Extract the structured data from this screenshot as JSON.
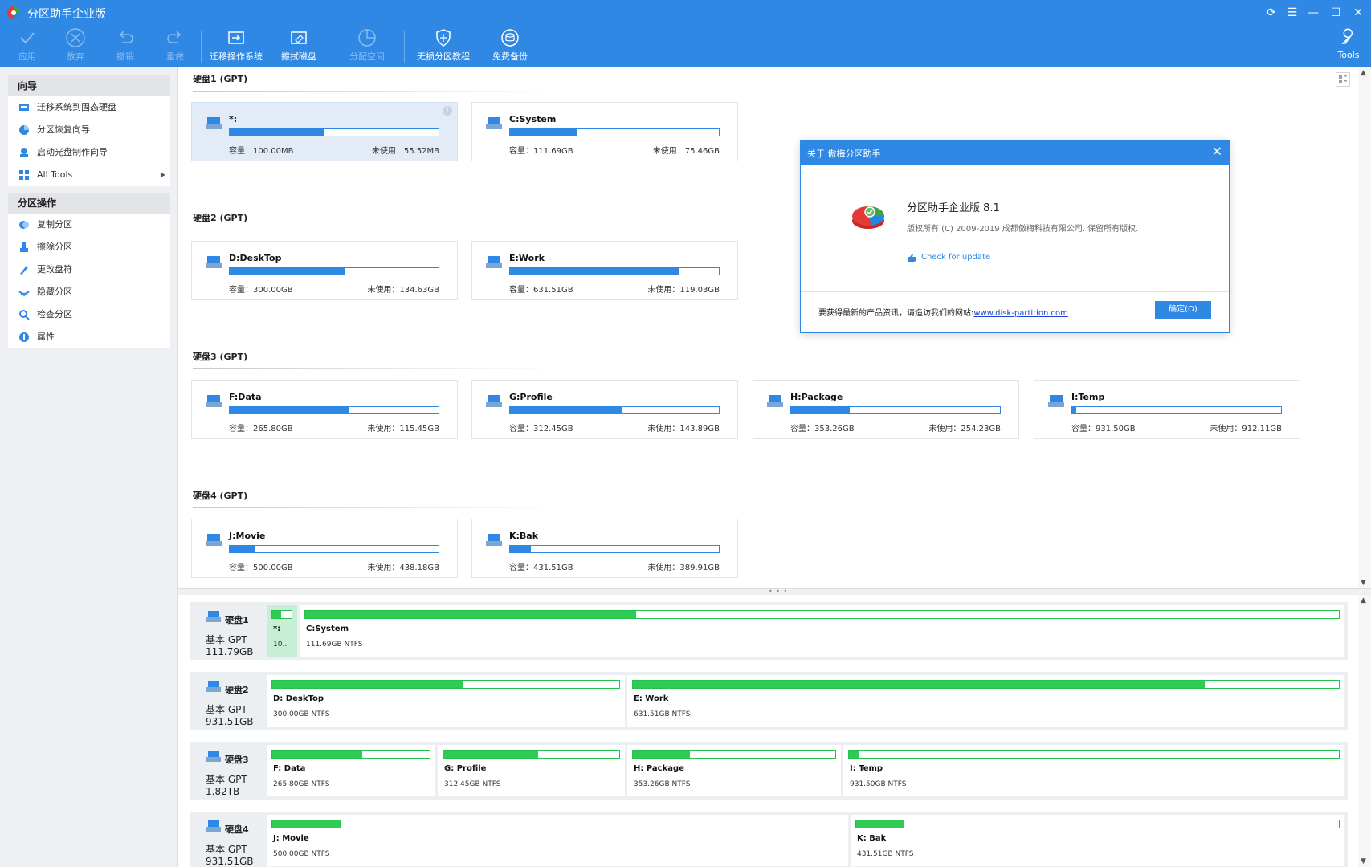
{
  "app": {
    "title": "分区助手企业版"
  },
  "titlebar": {
    "buttons": [
      {
        "name": "refresh-icon",
        "glyph": "⟳"
      },
      {
        "name": "menu-icon",
        "glyph": "☰"
      },
      {
        "name": "minimize-icon",
        "glyph": "—"
      },
      {
        "name": "maximize-icon",
        "glyph": "☐"
      },
      {
        "name": "close-icon",
        "glyph": "✕"
      }
    ]
  },
  "toolbar": {
    "apply": "应用",
    "discard": "放弃",
    "undo": "撤销",
    "redo": "重做",
    "migrate_os": "迁移操作系统",
    "wipe_disk": "擦拭磁盘",
    "allocate_space": "分配空间",
    "lossless_tutorial": "无损分区教程",
    "free_backup": "免费备份",
    "tools": "Tools"
  },
  "sidebar": {
    "wizard_title": "向导",
    "wizard_items": [
      {
        "label": "迁移系统到固态硬盘",
        "icon": "ssd-migrate-icon"
      },
      {
        "label": "分区恢复向导",
        "icon": "partition-recovery-icon"
      },
      {
        "label": "启动光盘制作向导",
        "icon": "bootable-media-icon"
      },
      {
        "label": "All Tools",
        "icon": "all-tools-icon"
      }
    ],
    "ops_title": "分区操作",
    "ops_items": [
      {
        "label": "复制分区",
        "icon": "copy-partition-icon"
      },
      {
        "label": "擦除分区",
        "icon": "wipe-partition-icon"
      },
      {
        "label": "更改盘符",
        "icon": "change-letter-icon"
      },
      {
        "label": "隐藏分区",
        "icon": "hide-partition-icon"
      },
      {
        "label": "检查分区",
        "icon": "check-partition-icon"
      },
      {
        "label": "属性",
        "icon": "properties-icon"
      }
    ]
  },
  "labels": {
    "capacity_prefix": "容量：",
    "unused_prefix": "未使用："
  },
  "disks": [
    {
      "header": "硬盘1 (GPT)",
      "bottom_name": "硬盘1",
      "bottom_type": "基本 GPT",
      "bottom_size": "111.79GB",
      "partitions": [
        {
          "name": "*:",
          "capacity": "容量：100.00MB",
          "unused": "未使用：55.52MB",
          "used_fraction": 0.45,
          "bottom_name": "*:",
          "bottom_info": "10...",
          "selected": true
        },
        {
          "name": "C:System",
          "capacity": "容量：111.69GB",
          "unused": "未使用：75.46GB",
          "used_fraction": 0.32,
          "bottom_name": "C:System",
          "bottom_info": "111.69GB NTFS",
          "selected": false
        }
      ]
    },
    {
      "header": "硬盘2 (GPT)",
      "bottom_name": "硬盘2",
      "bottom_type": "基本 GPT",
      "bottom_size": "931.51GB",
      "partitions": [
        {
          "name": "D:DeskTop",
          "capacity": "容量：300.00GB",
          "unused": "未使用：134.63GB",
          "used_fraction": 0.55,
          "bottom_name": "D: DeskTop",
          "bottom_info": "300.00GB NTFS",
          "selected": false
        },
        {
          "name": "E:Work",
          "capacity": "容量：631.51GB",
          "unused": "未使用：119.03GB",
          "used_fraction": 0.81,
          "bottom_name": "E: Work",
          "bottom_info": "631.51GB NTFS",
          "selected": false
        }
      ]
    },
    {
      "header": "硬盘3 (GPT)",
      "bottom_name": "硬盘3",
      "bottom_type": "基本 GPT",
      "bottom_size": "1.82TB",
      "partitions": [
        {
          "name": "F:Data",
          "capacity": "容量：265.80GB",
          "unused": "未使用：115.45GB",
          "used_fraction": 0.57,
          "bottom_name": "F: Data",
          "bottom_info": "265.80GB NTFS",
          "selected": false
        },
        {
          "name": "G:Profile",
          "capacity": "容量：312.45GB",
          "unused": "未使用：143.89GB",
          "used_fraction": 0.54,
          "bottom_name": "G: Profile",
          "bottom_info": "312.45GB NTFS",
          "selected": false
        },
        {
          "name": "H:Package",
          "capacity": "容量：353.26GB",
          "unused": "未使用：254.23GB",
          "used_fraction": 0.28,
          "bottom_name": "H: Package",
          "bottom_info": "353.26GB NTFS",
          "selected": false
        },
        {
          "name": "I:Temp",
          "capacity": "容量：931.50GB",
          "unused": "未使用：912.11GB",
          "used_fraction": 0.02,
          "bottom_name": "I: Temp",
          "bottom_info": "931.50GB NTFS",
          "selected": false
        }
      ]
    },
    {
      "header": "硬盘4 (GPT)",
      "bottom_name": "硬盘4",
      "bottom_type": "基本 GPT",
      "bottom_size": "931.51GB",
      "partitions": [
        {
          "name": "J:Movie",
          "capacity": "容量：500.00GB",
          "unused": "未使用：438.18GB",
          "used_fraction": 0.12,
          "bottom_name": "J: Movie",
          "bottom_info": "500.00GB NTFS",
          "selected": false
        },
        {
          "name": "K:Bak",
          "capacity": "容量：431.51GB",
          "unused": "未使用：389.91GB",
          "used_fraction": 0.1,
          "bottom_name": "K: Bak",
          "bottom_info": "431.51GB NTFS",
          "selected": false
        }
      ]
    }
  ],
  "dialog": {
    "title": "关于 傲梅分区助手",
    "app_name": "分区助手企业版 8.1",
    "copyright": "版权所有 (C) 2009-2019 成都傲梅科技有限公司. 保留所有版权.",
    "check_update": "Check for update",
    "footer_text": "要获得最新的产品资讯，请造访我们的网站:",
    "footer_link": "www.disk-partition.com",
    "ok": "确定(O)"
  },
  "colors": {
    "accent": "#2f88e4",
    "usage_green": "#2fcc55",
    "link": "#1a47d6"
  }
}
